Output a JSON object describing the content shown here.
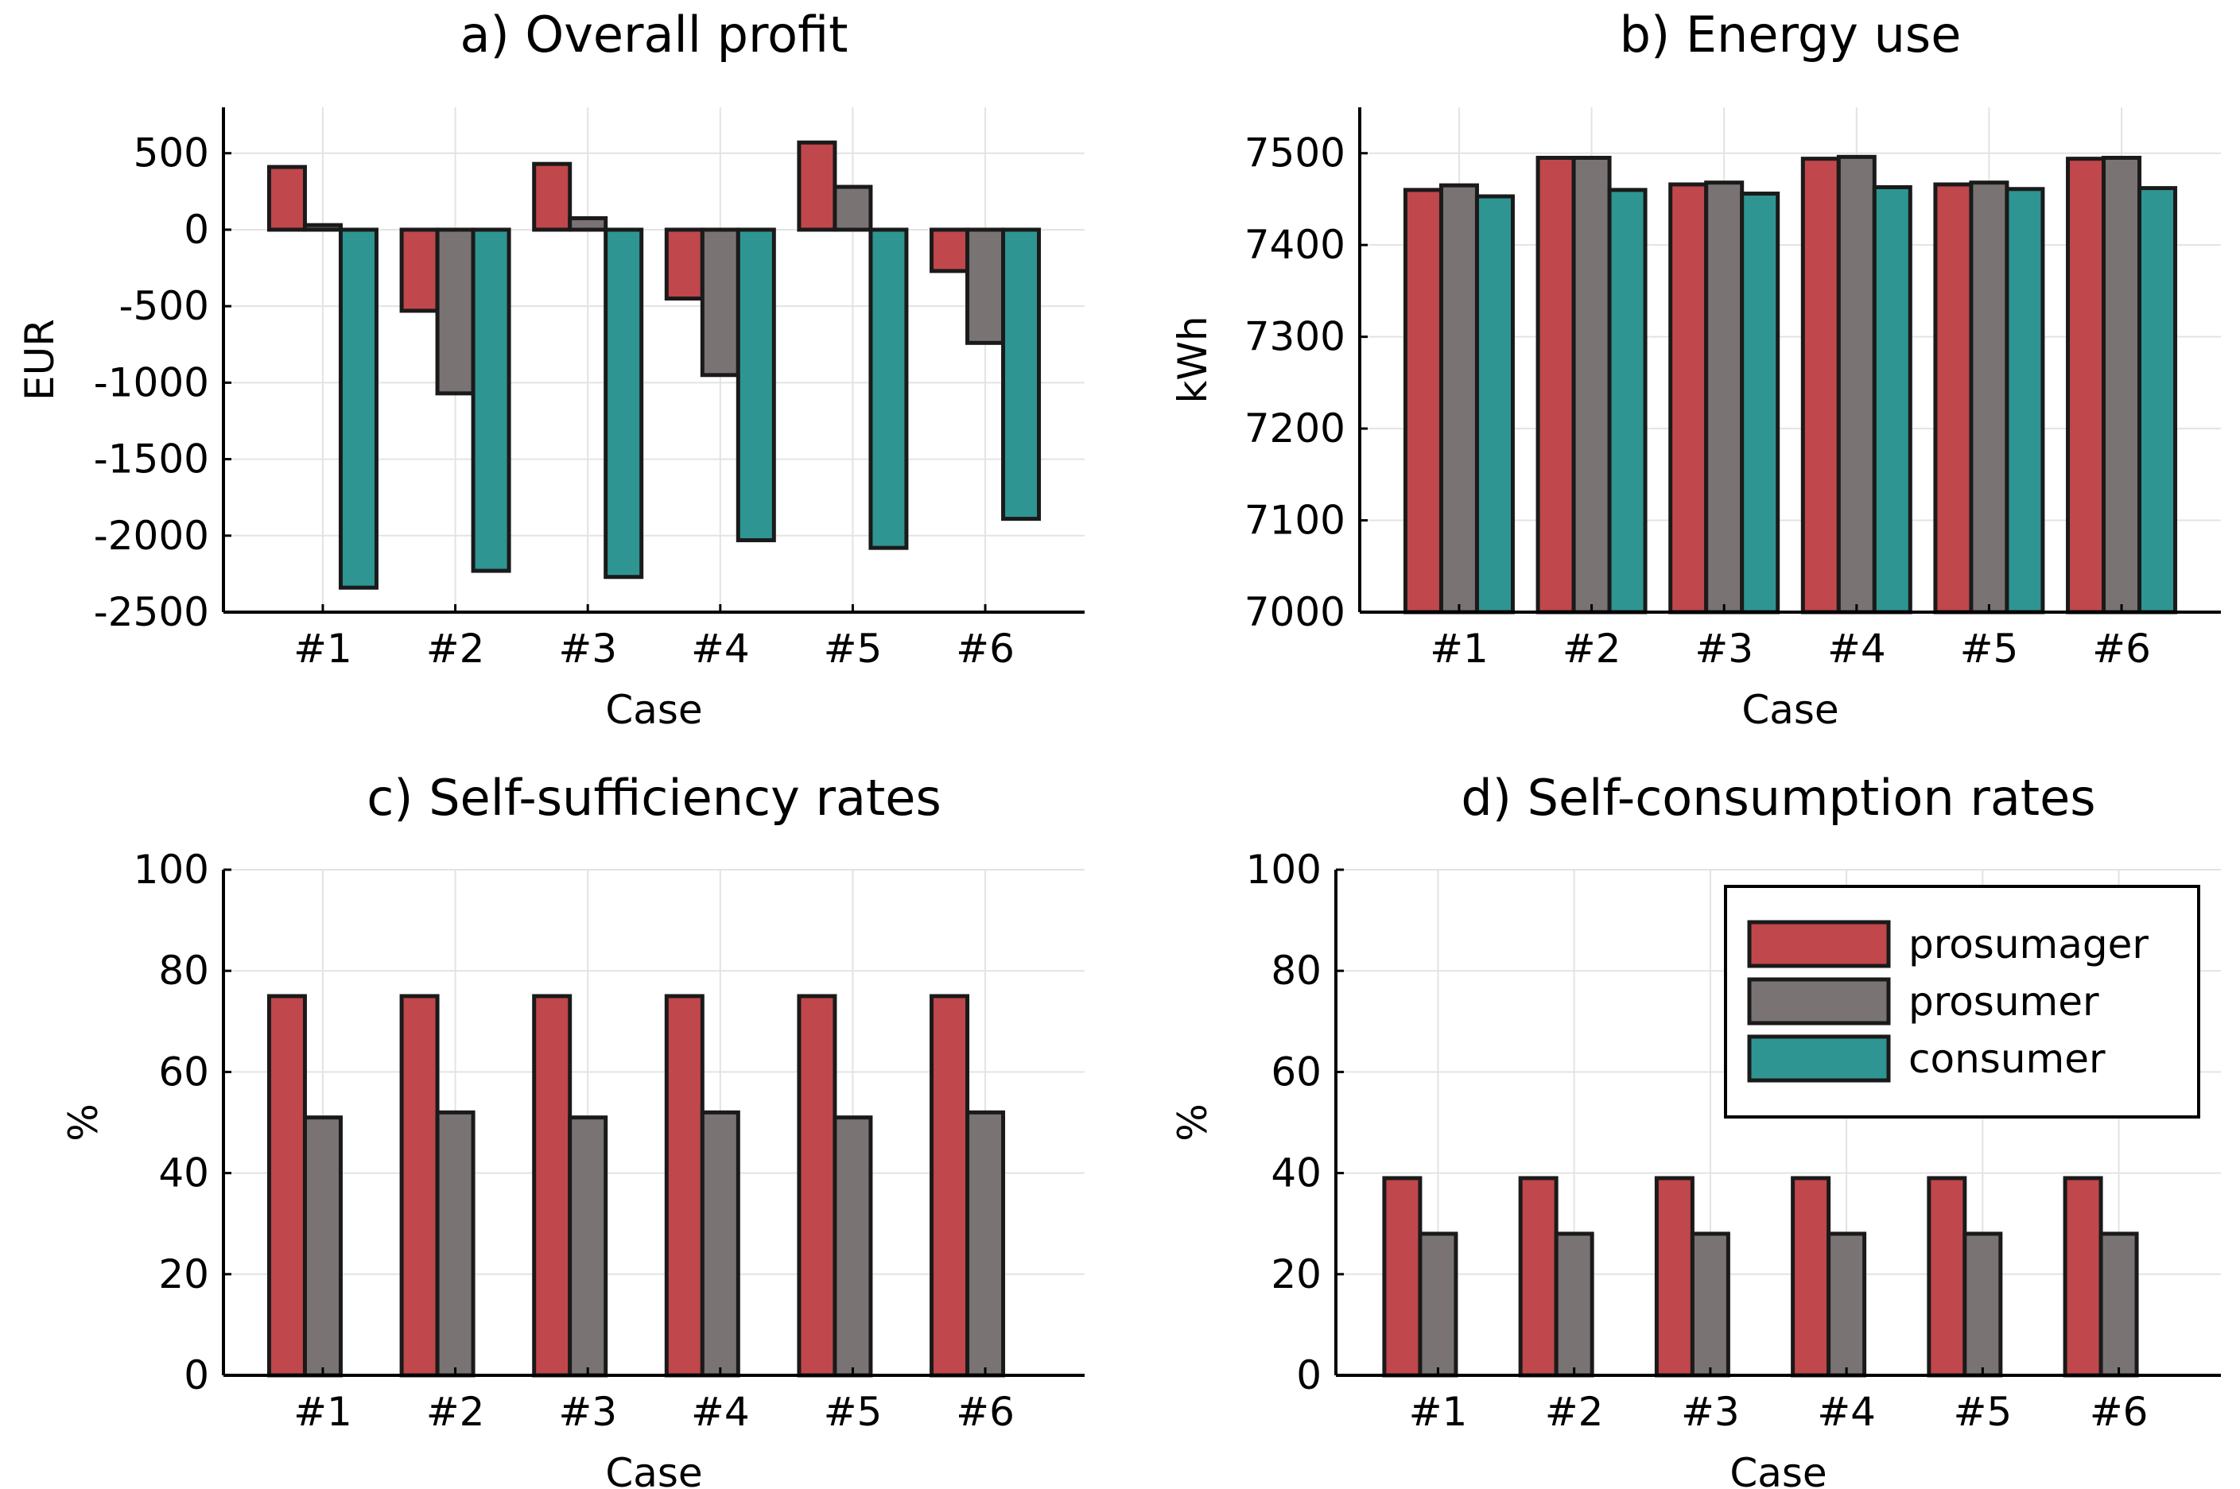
{
  "series_colors": {
    "prosumager": "#c0474b",
    "prosumer": "#7a7373",
    "consumer": "#2e9592"
  },
  "legend": {
    "position": "top-right (panel d)",
    "entries": [
      "prosumager",
      "prosumer",
      "consumer"
    ]
  },
  "chart_data": [
    {
      "id": "a",
      "type": "bar",
      "title": "a) Overall profit",
      "xlabel": "Case",
      "ylabel": "EUR",
      "ylim": [
        -2500,
        800
      ],
      "yticks": [
        500,
        0,
        -500,
        -1000,
        -1500,
        -2000,
        -2500
      ],
      "ytick_labels": [
        "500",
        "0",
        "-500",
        "-1000",
        "-1500",
        "-2000",
        "-2500"
      ],
      "grid": true,
      "categories": [
        "#1",
        "#2",
        "#3",
        "#4",
        "#5",
        "#6"
      ],
      "series": [
        {
          "name": "prosumager",
          "values": [
            410,
            -530,
            430,
            -450,
            570,
            -270
          ]
        },
        {
          "name": "prosumer",
          "values": [
            30,
            -1070,
            75,
            -950,
            280,
            -740
          ]
        },
        {
          "name": "consumer",
          "values": [
            -2340,
            -2230,
            -2270,
            -2030,
            -2080,
            -1890
          ]
        }
      ]
    },
    {
      "id": "b",
      "type": "bar",
      "title": "b) Energy use",
      "xlabel": "Case",
      "ylabel": "kWh",
      "ylim": [
        7000,
        7550
      ],
      "yticks": [
        7500,
        7400,
        7300,
        7200,
        7100,
        7000
      ],
      "ytick_labels": [
        "7500",
        "7400",
        "7300",
        "7200",
        "7100",
        "7000"
      ],
      "grid": true,
      "categories": [
        "#1",
        "#2",
        "#3",
        "#4",
        "#5",
        "#6"
      ],
      "series": [
        {
          "name": "prosumager",
          "values": [
            7460,
            7495,
            7466,
            7494,
            7466,
            7494
          ]
        },
        {
          "name": "prosumer",
          "values": [
            7465,
            7495,
            7468,
            7496,
            7468,
            7495
          ]
        },
        {
          "name": "consumer",
          "values": [
            7453,
            7460,
            7456,
            7463,
            7461,
            7462
          ]
        }
      ]
    },
    {
      "id": "c",
      "type": "bar",
      "title": "c) Self-sufficiency rates",
      "xlabel": "Case",
      "ylabel": "%",
      "ylim": [
        0,
        100
      ],
      "yticks": [
        100,
        80,
        60,
        40,
        20,
        0
      ],
      "ytick_labels": [
        "100",
        "80",
        "60",
        "40",
        "20",
        "0"
      ],
      "grid": true,
      "categories": [
        "#1",
        "#2",
        "#3",
        "#4",
        "#5",
        "#6"
      ],
      "series": [
        {
          "name": "prosumager",
          "values": [
            75,
            75,
            75,
            75,
            75,
            75
          ]
        },
        {
          "name": "prosumer",
          "values": [
            51,
            52,
            51,
            52,
            51,
            52
          ]
        },
        {
          "name": "consumer",
          "values": [
            0,
            0,
            0,
            0,
            0,
            0
          ]
        }
      ]
    },
    {
      "id": "d",
      "type": "bar",
      "title": "d) Self-consumption rates",
      "xlabel": "Case",
      "ylabel": "%",
      "ylim": [
        0,
        100
      ],
      "yticks": [
        100,
        80,
        60,
        40,
        20,
        0
      ],
      "ytick_labels": [
        "100",
        "80",
        "60",
        "40",
        "20",
        "0"
      ],
      "grid": true,
      "categories": [
        "#1",
        "#2",
        "#3",
        "#4",
        "#5",
        "#6"
      ],
      "series": [
        {
          "name": "prosumager",
          "values": [
            39,
            39,
            39,
            39,
            39,
            39
          ]
        },
        {
          "name": "prosumer",
          "values": [
            28,
            28,
            28,
            28,
            28,
            28
          ]
        },
        {
          "name": "consumer",
          "values": [
            0,
            0,
            0,
            0,
            0,
            0
          ]
        }
      ]
    }
  ]
}
